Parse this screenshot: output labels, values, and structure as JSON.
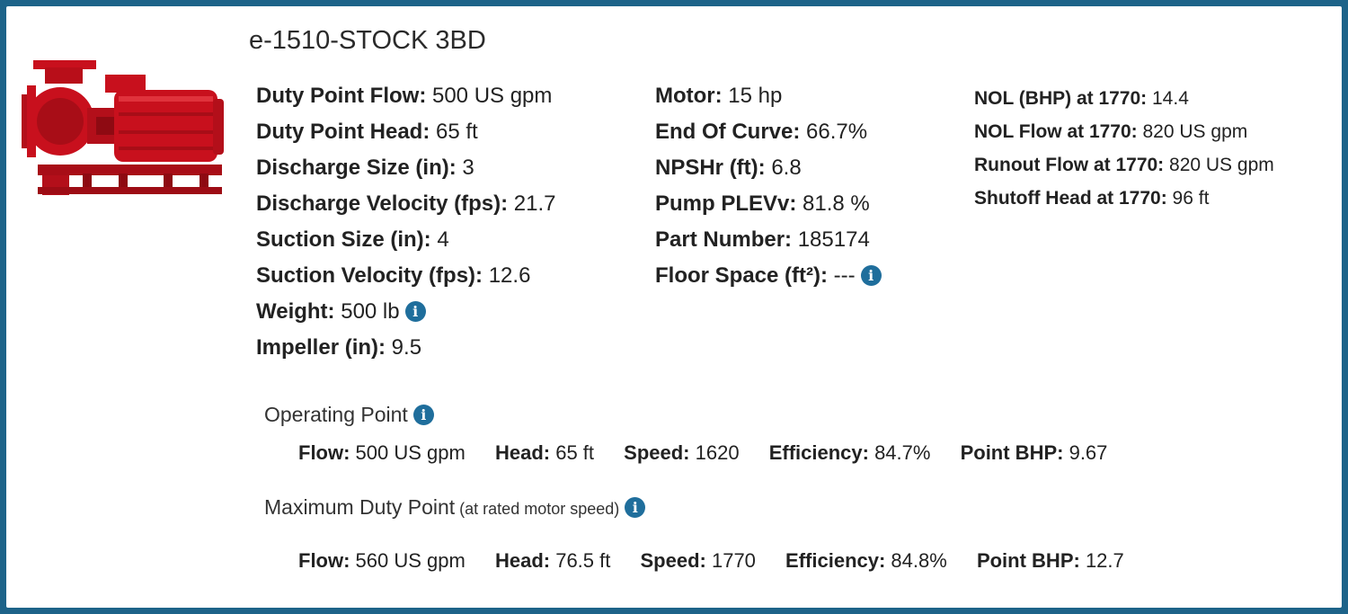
{
  "title": "e-1510-STOCK 3BD",
  "colors": {
    "frame": "#1d6389",
    "info_icon": "#1f6e9c",
    "pump_red": "#c8101d"
  },
  "specs_left": [
    {
      "label": "Duty Point Flow:",
      "value": " 500 US gpm"
    },
    {
      "label": "Duty Point Head:",
      "value": " 65 ft"
    },
    {
      "label": "Discharge Size (in):",
      "value": " 3"
    },
    {
      "label": "Discharge Velocity (fps):",
      "value": " 21.7"
    },
    {
      "label": "Suction Size (in):",
      "value": " 4"
    },
    {
      "label": "Suction Velocity (fps):",
      "value": " 12.6"
    },
    {
      "label": "Weight:",
      "value": " 500 lb"
    },
    {
      "label": "Impeller (in):",
      "value": " 9.5"
    }
  ],
  "specs_middle": [
    {
      "label": "Motor:",
      "value": " 15 hp"
    },
    {
      "label": "End Of Curve:",
      "value": " 66.7%"
    },
    {
      "label": "NPSHr (ft):",
      "value": " 6.8"
    },
    {
      "label": "Pump PLEVv:",
      "value": " 81.8 %"
    },
    {
      "label": "Part Number:",
      "value": " 185174"
    },
    {
      "label": "Floor Space (ft²):",
      "value": " ---"
    }
  ],
  "specs_right": [
    {
      "label": "NOL (BHP) at 1770:",
      "value": " 14.4"
    },
    {
      "label": "NOL Flow at 1770:",
      "value": " 820 US gpm"
    },
    {
      "label": "Runout Flow at 1770:",
      "value": " 820 US gpm"
    },
    {
      "label": "Shutoff Head at 1770:",
      "value": " 96 ft"
    }
  ],
  "info_icon_glyph": "i",
  "operating_point": {
    "heading": "Operating Point",
    "stats": [
      {
        "label": "Flow:",
        "value": " 500 US gpm"
      },
      {
        "label": "Head:",
        "value": " 65 ft"
      },
      {
        "label": "Speed:",
        "value": " 1620"
      },
      {
        "label": "Efficiency:",
        "value": " 84.7%"
      },
      {
        "label": "Point BHP:",
        "value": " 9.67"
      }
    ]
  },
  "maximum_duty_point": {
    "heading": "Maximum Duty Point",
    "note": " (at rated motor speed)",
    "stats": [
      {
        "label": "Flow:",
        "value": " 560 US gpm"
      },
      {
        "label": "Head:",
        "value": " 76.5 ft"
      },
      {
        "label": "Speed:",
        "value": " 1770"
      },
      {
        "label": "Efficiency:",
        "value": " 84.8%"
      },
      {
        "label": "Point BHP:",
        "value": " 12.7"
      }
    ]
  }
}
